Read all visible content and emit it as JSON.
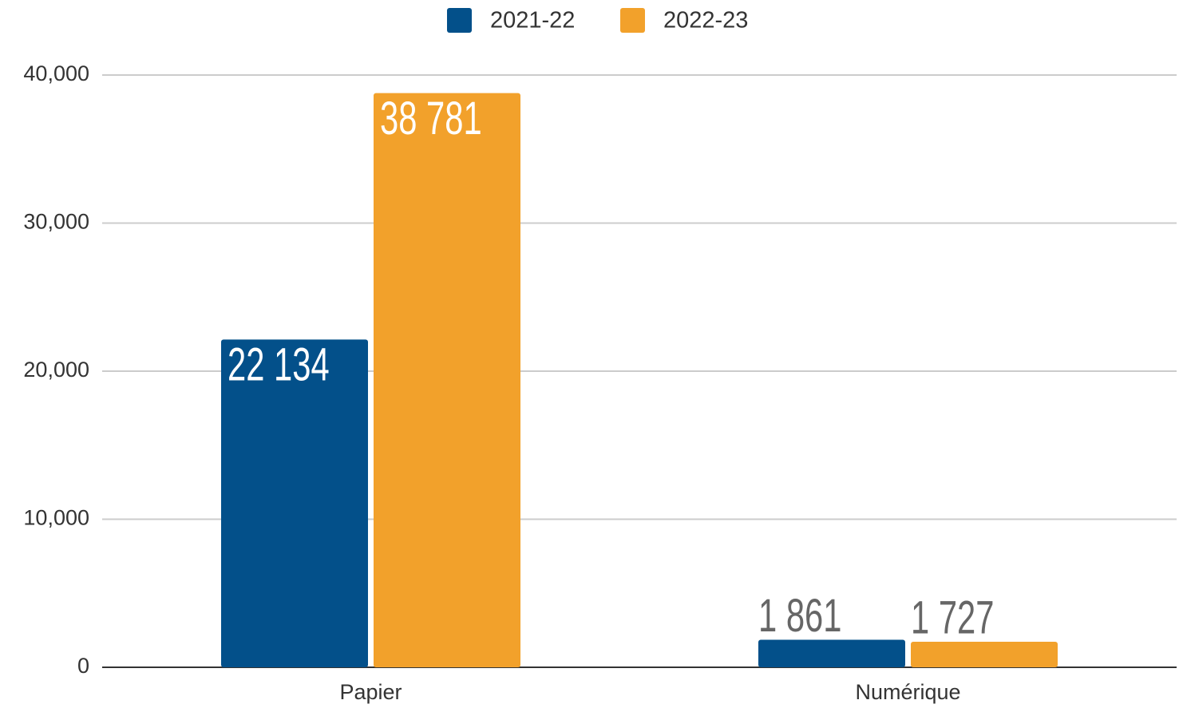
{
  "chart_data": {
    "type": "bar",
    "categories": [
      "Papier",
      "Numérique"
    ],
    "series": [
      {
        "name": "2021-22",
        "color": "#03508a",
        "values": [
          22134,
          1861
        ],
        "value_labels": [
          "22 134",
          "1 861"
        ]
      },
      {
        "name": "2022-23",
        "color": "#f2a12b",
        "values": [
          38781,
          1727
        ],
        "value_labels": [
          "38 781",
          "1 727"
        ]
      }
    ],
    "ylim": [
      0,
      40000
    ],
    "yticks": [
      0,
      {
        "value": 10000,
        "label": "10,000"
      },
      {
        "value": 20000,
        "label": "20,000"
      },
      {
        "value": 30000,
        "label": "30,000"
      },
      {
        "value": 40000,
        "label": "40,000"
      }
    ],
    "grid": true,
    "legend": "top"
  }
}
